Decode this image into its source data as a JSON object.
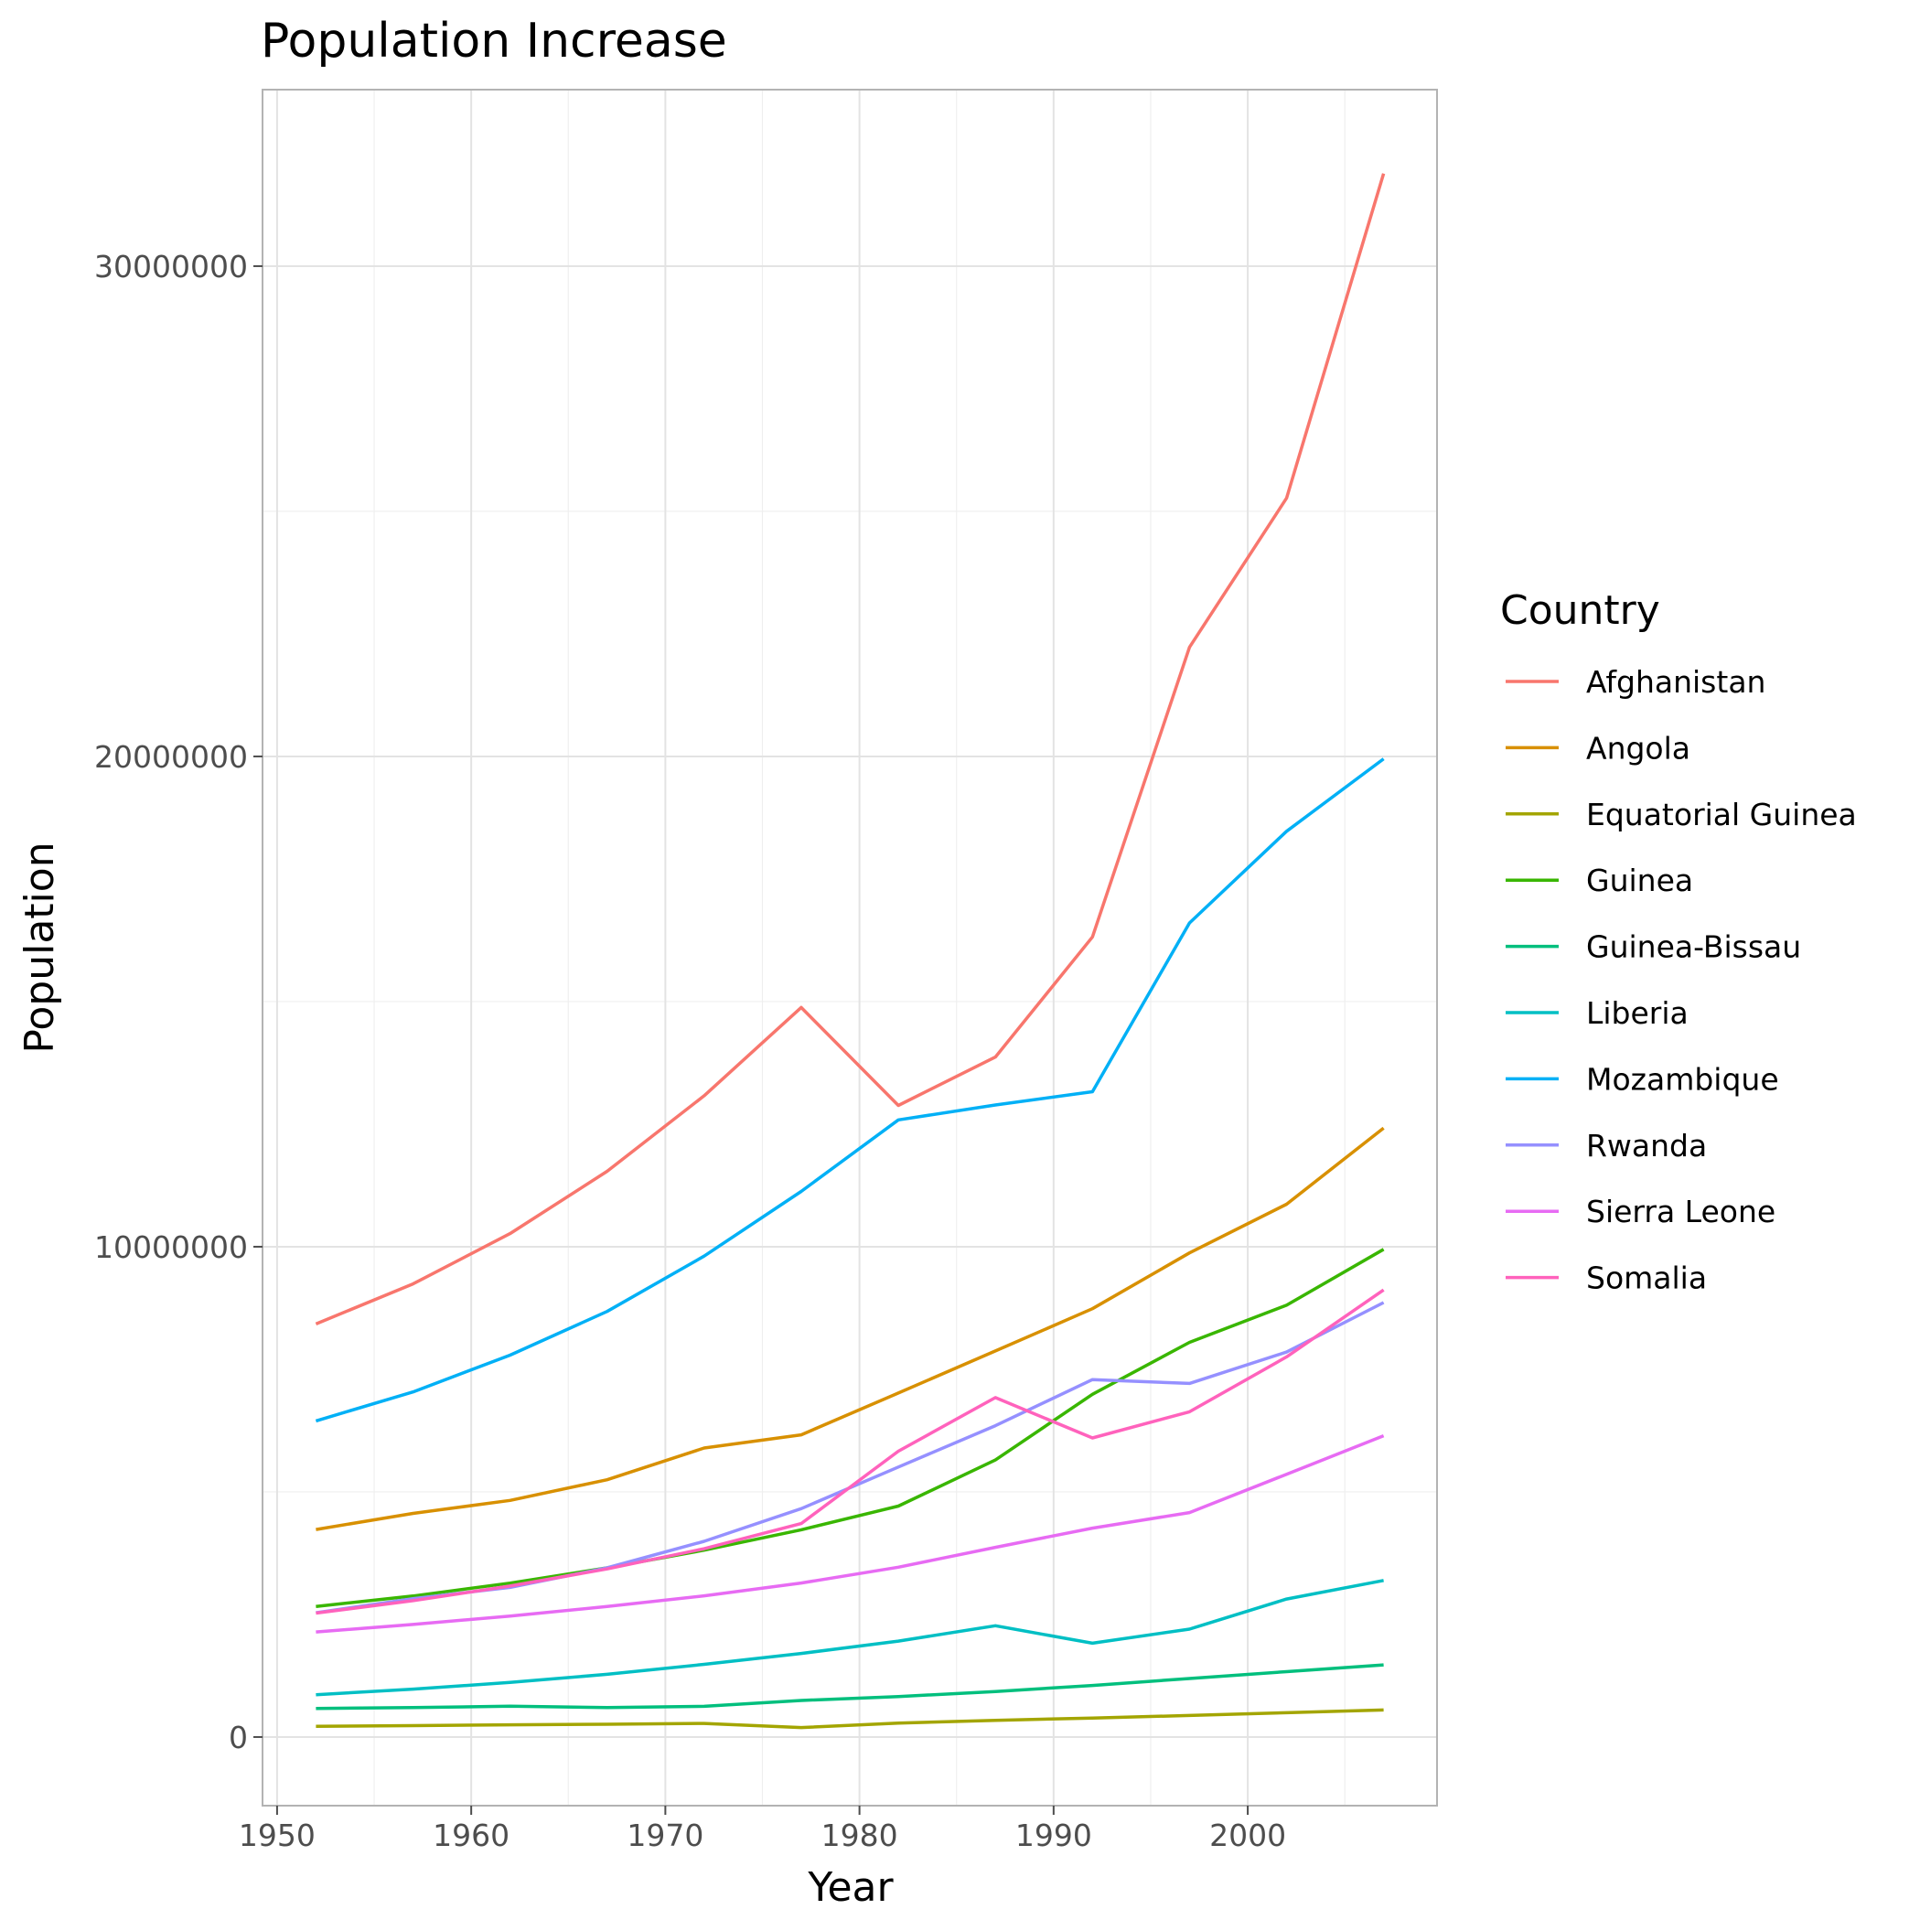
{
  "chart_data": {
    "type": "line",
    "title": "Population Increase",
    "xlabel": "Year",
    "ylabel": "Population",
    "x": [
      1952,
      1957,
      1962,
      1967,
      1972,
      1977,
      1982,
      1987,
      1992,
      1997,
      2002,
      2007
    ],
    "xlim": [
      1949.25,
      2009.75
    ],
    "ylim": [
      -1400000,
      33600000
    ],
    "x_ticks": [
      1950,
      1960,
      1970,
      1980,
      1990,
      2000
    ],
    "y_ticks": [
      0,
      10000000,
      20000000,
      30000000
    ],
    "y_tick_labels": [
      "0",
      "10000000",
      "20000000",
      "30000000"
    ],
    "grid": true,
    "legend": {
      "title": "Country",
      "position": "right"
    },
    "series": [
      {
        "name": "Afghanistan",
        "color": "#F8766D",
        "values": [
          8425333,
          9240934,
          10267083,
          11537966,
          13079460,
          14880372,
          12881816,
          13867957,
          16317921,
          22227415,
          25268405,
          31889923
        ]
      },
      {
        "name": "Angola",
        "color": "#D89000",
        "values": [
          4232095,
          4561361,
          4826015,
          5247469,
          5894858,
          6162675,
          7016384,
          7874230,
          8735988,
          9875024,
          10866106,
          12420476
        ]
      },
      {
        "name": "Equatorial Guinea",
        "color": "#A3A500",
        "values": [
          216964,
          232922,
          249220,
          259864,
          277603,
          192675,
          285483,
          341244,
          387838,
          439971,
          495627,
          551201
        ]
      },
      {
        "name": "Guinea",
        "color": "#39B600",
        "values": [
          2664249,
          2876726,
          3140003,
          3451418,
          3811387,
          4227026,
          4710497,
          5650262,
          6990574,
          8048834,
          8807818,
          9947814
        ]
      },
      {
        "name": "Guinea-Bissau",
        "color": "#00BF7D",
        "values": [
          580653,
          601095,
          627820,
          601287,
          625361,
          745228,
          825987,
          927524,
          1050938,
          1193708,
          1332459,
          1472041
        ]
      },
      {
        "name": "Liberia",
        "color": "#00BFC4",
        "values": [
          863308,
          975950,
          1112796,
          1279406,
          1482628,
          1703617,
          1956875,
          2269414,
          1912974,
          2200725,
          2814651,
          3193942
        ]
      },
      {
        "name": "Mozambique",
        "color": "#00B0F6",
        "values": [
          6446316,
          7038035,
          7788944,
          8680909,
          9809596,
          11127868,
          12587223,
          12891952,
          13160731,
          16603334,
          18473780,
          19951656
        ]
      },
      {
        "name": "Rwanda",
        "color": "#9590FF",
        "values": [
          2534927,
          2822082,
          3051242,
          3451079,
          3992121,
          4657072,
          5507565,
          6349365,
          7290203,
          7212583,
          7852401,
          8860588
        ]
      },
      {
        "name": "Sierra Leone",
        "color": "#E76BF3",
        "values": [
          2143249,
          2295678,
          2467895,
          2662190,
          2879013,
          3140897,
          3464522,
          3868905,
          4260884,
          4578212,
          5359092,
          6144562
        ]
      },
      {
        "name": "Somalia",
        "color": "#FF62BC",
        "values": [
          2526994,
          2780415,
          3080153,
          3428839,
          3840161,
          4353666,
          5828892,
          6921858,
          6099799,
          6633514,
          7753310,
          9118773
        ]
      }
    ]
  }
}
